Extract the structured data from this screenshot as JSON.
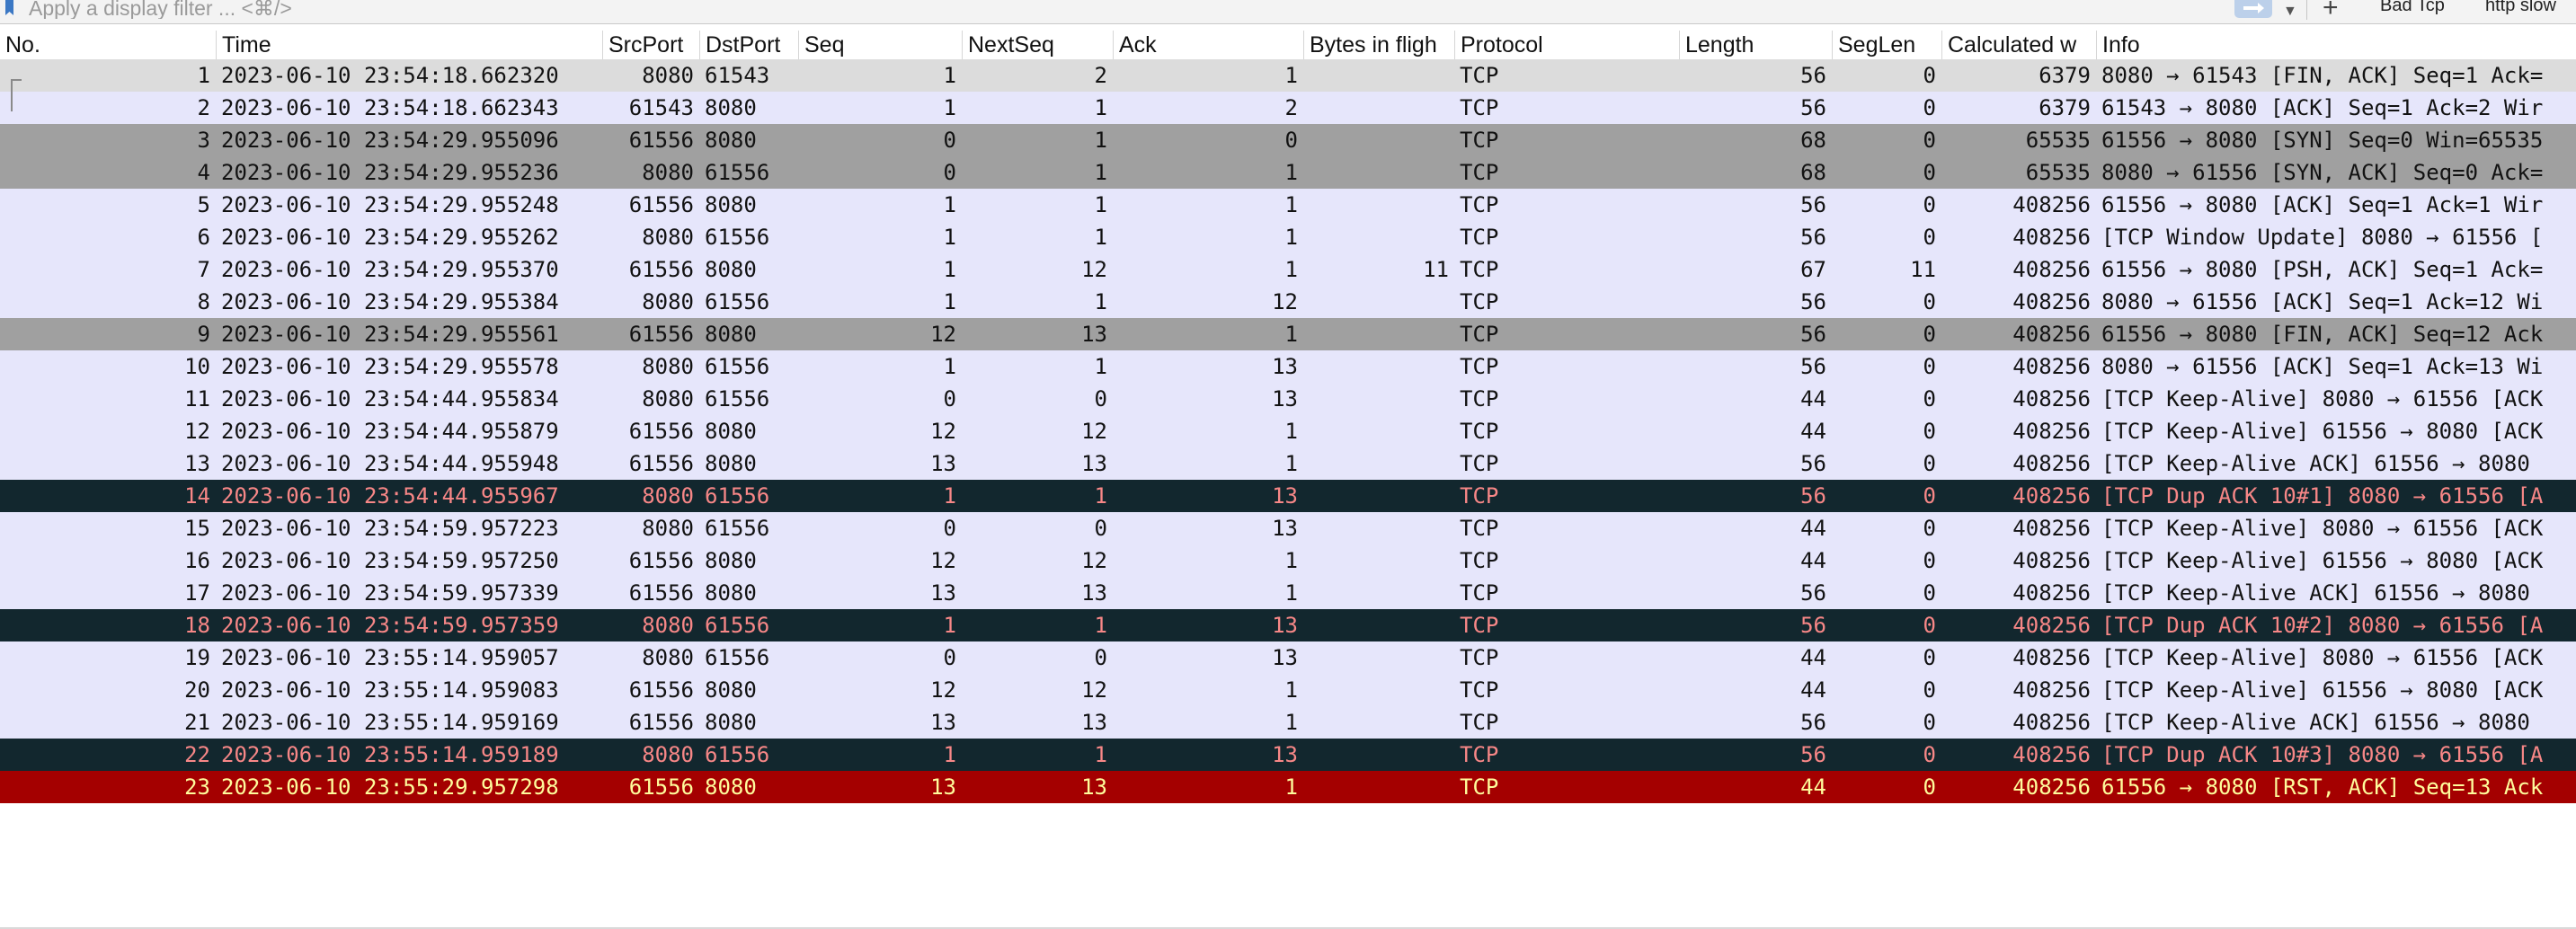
{
  "filter": {
    "placeholder": "Apply a display filter ... <⌘/>",
    "bookmark_icon": "bookmark-icon",
    "apply_icon": "arrow-right-icon",
    "dropdown_icon": "chevron-down-icon",
    "add_icon": "plus-icon",
    "add_glyph": "+",
    "buttons": [
      "Bad Tcp",
      "http slow"
    ]
  },
  "columns": [
    {
      "key": "no",
      "label": "No."
    },
    {
      "key": "time",
      "label": "Time"
    },
    {
      "key": "srcport",
      "label": "SrcPort"
    },
    {
      "key": "dstport",
      "label": "DstPort"
    },
    {
      "key": "seq",
      "label": "Seq"
    },
    {
      "key": "nextseq",
      "label": "NextSeq"
    },
    {
      "key": "ack",
      "label": "Ack"
    },
    {
      "key": "bif",
      "label": "Bytes in fligh"
    },
    {
      "key": "protocol",
      "label": "Protocol"
    },
    {
      "key": "length",
      "label": "Length"
    },
    {
      "key": "seglen",
      "label": "SegLen"
    },
    {
      "key": "calcwin",
      "label": "Calculated w"
    },
    {
      "key": "info",
      "label": "Info"
    }
  ],
  "colors": {
    "normal_bg": "#e6e6fb",
    "gray_bg": "#a0a0a0",
    "selected_bg": "#dcdcdc",
    "dupack_bg": "#12272e",
    "dupack_fg": "#f78787",
    "rst_bg": "#a40000",
    "rst_fg": "#fffc9c"
  },
  "rows": [
    {
      "no": "1",
      "time": "2023-06-10 23:54:18.662320",
      "srcport": "8080",
      "dstport": "61543",
      "seq": "1",
      "nextseq": "2",
      "ack": "1",
      "bif": "",
      "protocol": "TCP",
      "length": "56",
      "seglen": "0",
      "calcwin": "6379",
      "info": "8080 → 61543 [FIN, ACK] Seq=1 Ack=",
      "style": "selected"
    },
    {
      "no": "2",
      "time": "2023-06-10 23:54:18.662343",
      "srcport": "61543",
      "dstport": "8080",
      "seq": "1",
      "nextseq": "1",
      "ack": "2",
      "bif": "",
      "protocol": "TCP",
      "length": "56",
      "seglen": "0",
      "calcwin": "6379",
      "info": "61543 → 8080 [ACK] Seq=1 Ack=2 Wir",
      "style": "normal"
    },
    {
      "no": "3",
      "time": "2023-06-10 23:54:29.955096",
      "srcport": "61556",
      "dstport": "8080",
      "seq": "0",
      "nextseq": "1",
      "ack": "0",
      "bif": "",
      "protocol": "TCP",
      "length": "68",
      "seglen": "0",
      "calcwin": "65535",
      "info": "61556 → 8080 [SYN] Seq=0 Win=65535",
      "style": "gray"
    },
    {
      "no": "4",
      "time": "2023-06-10 23:54:29.955236",
      "srcport": "8080",
      "dstport": "61556",
      "seq": "0",
      "nextseq": "1",
      "ack": "1",
      "bif": "",
      "protocol": "TCP",
      "length": "68",
      "seglen": "0",
      "calcwin": "65535",
      "info": "8080 → 61556 [SYN, ACK] Seq=0 Ack=",
      "style": "gray"
    },
    {
      "no": "5",
      "time": "2023-06-10 23:54:29.955248",
      "srcport": "61556",
      "dstport": "8080",
      "seq": "1",
      "nextseq": "1",
      "ack": "1",
      "bif": "",
      "protocol": "TCP",
      "length": "56",
      "seglen": "0",
      "calcwin": "408256",
      "info": "61556 → 8080 [ACK] Seq=1 Ack=1 Wir",
      "style": "normal"
    },
    {
      "no": "6",
      "time": "2023-06-10 23:54:29.955262",
      "srcport": "8080",
      "dstport": "61556",
      "seq": "1",
      "nextseq": "1",
      "ack": "1",
      "bif": "",
      "protocol": "TCP",
      "length": "56",
      "seglen": "0",
      "calcwin": "408256",
      "info": "[TCP Window Update] 8080 → 61556 [",
      "style": "normal"
    },
    {
      "no": "7",
      "time": "2023-06-10 23:54:29.955370",
      "srcport": "61556",
      "dstport": "8080",
      "seq": "1",
      "nextseq": "12",
      "ack": "1",
      "bif": "11",
      "protocol": "TCP",
      "length": "67",
      "seglen": "11",
      "calcwin": "408256",
      "info": "61556 → 8080 [PSH, ACK] Seq=1 Ack=",
      "style": "normal"
    },
    {
      "no": "8",
      "time": "2023-06-10 23:54:29.955384",
      "srcport": "8080",
      "dstport": "61556",
      "seq": "1",
      "nextseq": "1",
      "ack": "12",
      "bif": "",
      "protocol": "TCP",
      "length": "56",
      "seglen": "0",
      "calcwin": "408256",
      "info": "8080 → 61556 [ACK] Seq=1 Ack=12 Wi",
      "style": "normal"
    },
    {
      "no": "9",
      "time": "2023-06-10 23:54:29.955561",
      "srcport": "61556",
      "dstport": "8080",
      "seq": "12",
      "nextseq": "13",
      "ack": "1",
      "bif": "",
      "protocol": "TCP",
      "length": "56",
      "seglen": "0",
      "calcwin": "408256",
      "info": "61556 → 8080 [FIN, ACK] Seq=12 Ack",
      "style": "gray"
    },
    {
      "no": "10",
      "time": "2023-06-10 23:54:29.955578",
      "srcport": "8080",
      "dstport": "61556",
      "seq": "1",
      "nextseq": "1",
      "ack": "13",
      "bif": "",
      "protocol": "TCP",
      "length": "56",
      "seglen": "0",
      "calcwin": "408256",
      "info": "8080 → 61556 [ACK] Seq=1 Ack=13 Wi",
      "style": "normal"
    },
    {
      "no": "11",
      "time": "2023-06-10 23:54:44.955834",
      "srcport": "8080",
      "dstport": "61556",
      "seq": "0",
      "nextseq": "0",
      "ack": "13",
      "bif": "",
      "protocol": "TCP",
      "length": "44",
      "seglen": "0",
      "calcwin": "408256",
      "info": "[TCP Keep-Alive] 8080 → 61556 [ACK",
      "style": "normal"
    },
    {
      "no": "12",
      "time": "2023-06-10 23:54:44.955879",
      "srcport": "61556",
      "dstport": "8080",
      "seq": "12",
      "nextseq": "12",
      "ack": "1",
      "bif": "",
      "protocol": "TCP",
      "length": "44",
      "seglen": "0",
      "calcwin": "408256",
      "info": "[TCP Keep-Alive] 61556 → 8080 [ACK",
      "style": "normal"
    },
    {
      "no": "13",
      "time": "2023-06-10 23:54:44.955948",
      "srcport": "61556",
      "dstport": "8080",
      "seq": "13",
      "nextseq": "13",
      "ack": "1",
      "bif": "",
      "protocol": "TCP",
      "length": "56",
      "seglen": "0",
      "calcwin": "408256",
      "info": "[TCP Keep-Alive ACK] 61556 → 8080",
      "style": "normal"
    },
    {
      "no": "14",
      "time": "2023-06-10 23:54:44.955967",
      "srcport": "8080",
      "dstport": "61556",
      "seq": "1",
      "nextseq": "1",
      "ack": "13",
      "bif": "",
      "protocol": "TCP",
      "length": "56",
      "seglen": "0",
      "calcwin": "408256",
      "info": "[TCP Dup ACK 10#1] 8080 → 61556 [A",
      "style": "dark"
    },
    {
      "no": "15",
      "time": "2023-06-10 23:54:59.957223",
      "srcport": "8080",
      "dstport": "61556",
      "seq": "0",
      "nextseq": "0",
      "ack": "13",
      "bif": "",
      "protocol": "TCP",
      "length": "44",
      "seglen": "0",
      "calcwin": "408256",
      "info": "[TCP Keep-Alive] 8080 → 61556 [ACK",
      "style": "normal"
    },
    {
      "no": "16",
      "time": "2023-06-10 23:54:59.957250",
      "srcport": "61556",
      "dstport": "8080",
      "seq": "12",
      "nextseq": "12",
      "ack": "1",
      "bif": "",
      "protocol": "TCP",
      "length": "44",
      "seglen": "0",
      "calcwin": "408256",
      "info": "[TCP Keep-Alive] 61556 → 8080 [ACK",
      "style": "normal"
    },
    {
      "no": "17",
      "time": "2023-06-10 23:54:59.957339",
      "srcport": "61556",
      "dstport": "8080",
      "seq": "13",
      "nextseq": "13",
      "ack": "1",
      "bif": "",
      "protocol": "TCP",
      "length": "56",
      "seglen": "0",
      "calcwin": "408256",
      "info": "[TCP Keep-Alive ACK] 61556 → 8080",
      "style": "normal"
    },
    {
      "no": "18",
      "time": "2023-06-10 23:54:59.957359",
      "srcport": "8080",
      "dstport": "61556",
      "seq": "1",
      "nextseq": "1",
      "ack": "13",
      "bif": "",
      "protocol": "TCP",
      "length": "56",
      "seglen": "0",
      "calcwin": "408256",
      "info": "[TCP Dup ACK 10#2] 8080 → 61556 [A",
      "style": "dark"
    },
    {
      "no": "19",
      "time": "2023-06-10 23:55:14.959057",
      "srcport": "8080",
      "dstport": "61556",
      "seq": "0",
      "nextseq": "0",
      "ack": "13",
      "bif": "",
      "protocol": "TCP",
      "length": "44",
      "seglen": "0",
      "calcwin": "408256",
      "info": "[TCP Keep-Alive] 8080 → 61556 [ACK",
      "style": "normal"
    },
    {
      "no": "20",
      "time": "2023-06-10 23:55:14.959083",
      "srcport": "61556",
      "dstport": "8080",
      "seq": "12",
      "nextseq": "12",
      "ack": "1",
      "bif": "",
      "protocol": "TCP",
      "length": "44",
      "seglen": "0",
      "calcwin": "408256",
      "info": "[TCP Keep-Alive] 61556 → 8080 [ACK",
      "style": "normal"
    },
    {
      "no": "21",
      "time": "2023-06-10 23:55:14.959169",
      "srcport": "61556",
      "dstport": "8080",
      "seq": "13",
      "nextseq": "13",
      "ack": "1",
      "bif": "",
      "protocol": "TCP",
      "length": "56",
      "seglen": "0",
      "calcwin": "408256",
      "info": "[TCP Keep-Alive ACK] 61556 → 8080",
      "style": "normal"
    },
    {
      "no": "22",
      "time": "2023-06-10 23:55:14.959189",
      "srcport": "8080",
      "dstport": "61556",
      "seq": "1",
      "nextseq": "1",
      "ack": "13",
      "bif": "",
      "protocol": "TCP",
      "length": "56",
      "seglen": "0",
      "calcwin": "408256",
      "info": "[TCP Dup ACK 10#3] 8080 → 61556 [A",
      "style": "dark"
    },
    {
      "no": "23",
      "time": "2023-06-10 23:55:29.957298",
      "srcport": "61556",
      "dstport": "8080",
      "seq": "13",
      "nextseq": "13",
      "ack": "1",
      "bif": "",
      "protocol": "TCP",
      "length": "44",
      "seglen": "0",
      "calcwin": "408256",
      "info": "61556 → 8080 [RST, ACK] Seq=13 Ack",
      "style": "red"
    }
  ]
}
